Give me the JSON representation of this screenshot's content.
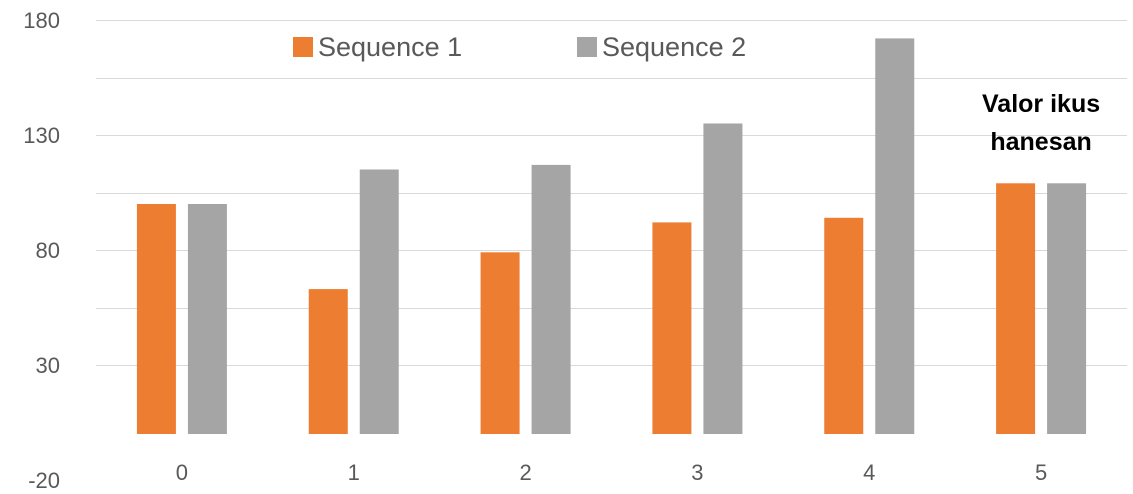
{
  "chart_data": {
    "type": "bar",
    "categories": [
      "0",
      "1",
      "2",
      "3",
      "4",
      "5"
    ],
    "series": [
      {
        "name": "Sequence 1",
        "color": "#ED7D31",
        "values": [
          100,
          63,
          79,
          92,
          94,
          109
        ]
      },
      {
        "name": "Sequence 2",
        "color": "#A5A5A5",
        "values": [
          100,
          115,
          117,
          135,
          172,
          109
        ]
      }
    ],
    "yticks": [
      -20,
      30,
      80,
      130,
      180
    ],
    "ylim": [
      -20,
      180
    ],
    "baseline": 0,
    "grid": true,
    "legend_position": "top",
    "annotation": {
      "lines": [
        "Valor ikus",
        "hanesan"
      ],
      "category_index": 5
    },
    "gridline_color": "#D9D9D9",
    "text_color": "#595959"
  }
}
